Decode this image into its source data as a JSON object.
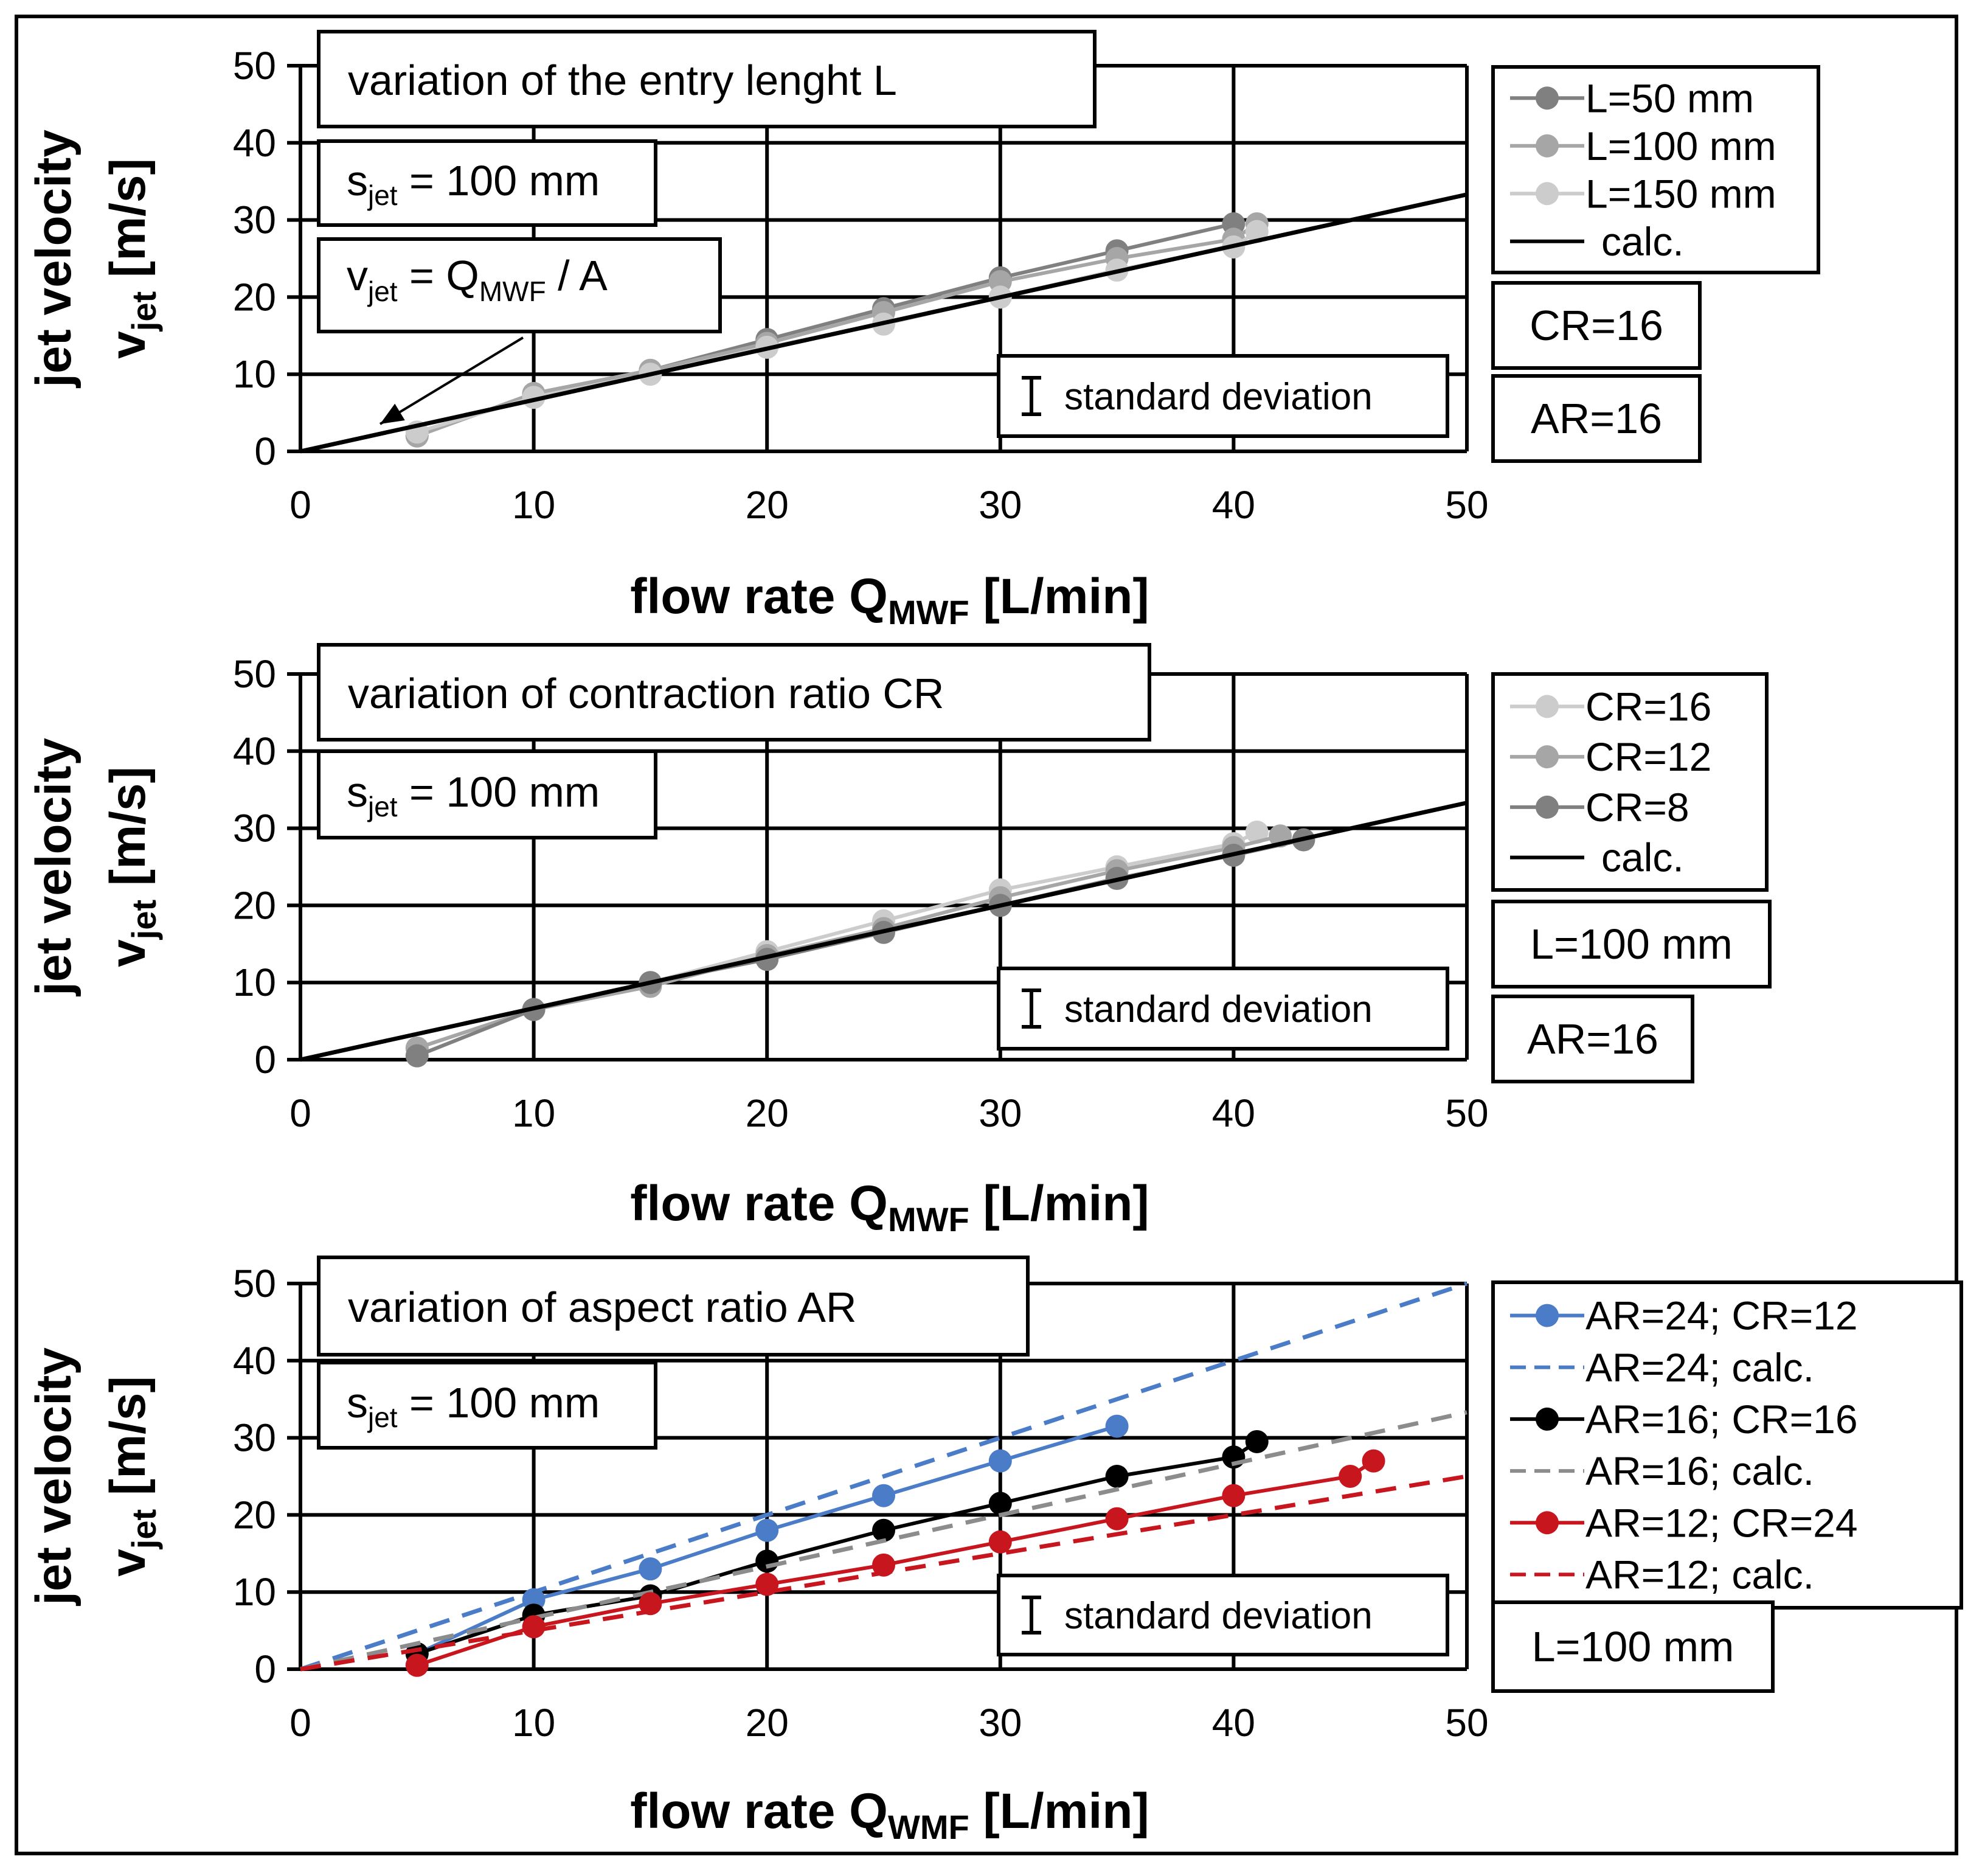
{
  "chart_data": [
    {
      "type": "line",
      "title": "variation of the entry lenght L",
      "annotations": [
        {
          "text": "s",
          "sub": "jet",
          "rest": " = 100 mm"
        },
        {
          "formula": true,
          "parts": [
            "v",
            "jet",
            " = Q",
            "MWF",
            " / A"
          ]
        },
        {
          "text": "standard deviation"
        }
      ],
      "side_boxes": [],
      "side_labels": [
        "CR=16",
        "AR=16"
      ],
      "xlabel": {
        "main": "flow rate Q",
        "sub": "MWF",
        "unit": " [L/min]"
      },
      "ylabel": {
        "line1": "jet velocity",
        "v": "v",
        "sub": "jet",
        "unit": " [m/s]"
      },
      "xlim": [
        0,
        50
      ],
      "ylim": [
        0,
        50
      ],
      "xticks": [
        "0",
        "10",
        "20",
        "30",
        "40",
        "50"
      ],
      "yticks": [
        "0",
        "10",
        "20",
        "30",
        "40",
        "50"
      ],
      "grid": true,
      "legend_position": "right",
      "series": [
        {
          "name": "L=50 mm",
          "color": "#808080",
          "marker": true,
          "dash": false,
          "x": [
            5,
            10,
            15,
            20,
            25,
            30,
            35,
            40
          ],
          "y": [
            2,
            7.5,
            10.5,
            14.5,
            18.5,
            22.5,
            26,
            29.5
          ]
        },
        {
          "name": "L=100 mm",
          "color": "#a6a6a6",
          "marker": true,
          "dash": false,
          "x": [
            5,
            10,
            15,
            20,
            25,
            30,
            35,
            40,
            41
          ],
          "y": [
            2,
            7.5,
            10.5,
            14,
            18,
            22,
            25,
            27.5,
            29.5
          ]
        },
        {
          "name": "L=150 mm",
          "color": "#cccccc",
          "marker": true,
          "dash": false,
          "x": [
            5,
            10,
            15,
            20,
            25,
            30,
            35,
            40,
            41
          ],
          "y": [
            2.5,
            7,
            10,
            13.5,
            16.5,
            20,
            23.5,
            26.5,
            28.5
          ]
        },
        {
          "name": "calc.",
          "color": "#000000",
          "marker": false,
          "dash": false,
          "x": [
            0,
            50
          ],
          "y": [
            0,
            33.3
          ]
        }
      ]
    },
    {
      "type": "line",
      "title": "variation of contraction ratio CR",
      "annotations": [
        {
          "text": "s",
          "sub": "jet",
          "rest": " = 100 mm"
        },
        {
          "text": "standard deviation"
        }
      ],
      "side_labels": [
        "L=100 mm",
        "AR=16"
      ],
      "xlabel": {
        "main": "flow rate Q",
        "sub": "MWF",
        "unit": " [L/min]"
      },
      "ylabel": {
        "line1": "jet velocity",
        "v": "v",
        "sub": "jet",
        "unit": " [m/s]"
      },
      "xlim": [
        0,
        50
      ],
      "ylim": [
        0,
        50
      ],
      "xticks": [
        "0",
        "10",
        "20",
        "30",
        "40",
        "50"
      ],
      "yticks": [
        "0",
        "10",
        "20",
        "30",
        "40",
        "50"
      ],
      "grid": true,
      "legend_position": "right",
      "series": [
        {
          "name": "CR=16",
          "color": "#cccccc",
          "marker": true,
          "dash": false,
          "x": [
            5,
            10,
            15,
            20,
            25,
            30,
            35,
            40,
            41
          ],
          "y": [
            1.5,
            6.5,
            10,
            14,
            18,
            22,
            25,
            28,
            29.5
          ]
        },
        {
          "name": "CR=12",
          "color": "#a6a6a6",
          "marker": true,
          "dash": false,
          "x": [
            5,
            10,
            15,
            20,
            25,
            30,
            35,
            40,
            42
          ],
          "y": [
            1.5,
            6.5,
            9.5,
            13.5,
            17,
            21,
            24.5,
            27.5,
            29
          ]
        },
        {
          "name": "CR=8",
          "color": "#808080",
          "marker": true,
          "dash": false,
          "x": [
            5,
            10,
            15,
            20,
            25,
            30,
            35,
            40,
            43
          ],
          "y": [
            0.5,
            6.5,
            10,
            13,
            16.5,
            20,
            23.5,
            26.5,
            28.5
          ]
        },
        {
          "name": "calc.",
          "color": "#000000",
          "marker": false,
          "dash": false,
          "x": [
            0,
            50
          ],
          "y": [
            0,
            33.3
          ]
        }
      ]
    },
    {
      "type": "line",
      "title": "variation of aspect ratio AR",
      "annotations": [
        {
          "text": "s",
          "sub": "jet",
          "rest": " = 100 mm"
        },
        {
          "text": "standard deviation"
        }
      ],
      "side_labels": [
        "L=100 mm"
      ],
      "xlabel": {
        "main": "flow rate Q",
        "sub": "WMF",
        "unit": " [L/min]"
      },
      "ylabel": {
        "line1": "jet velocity",
        "v": "v",
        "sub": "jet",
        "unit": " [m/s]"
      },
      "xlim": [
        0,
        50
      ],
      "ylim": [
        0,
        50
      ],
      "xticks": [
        "0",
        "10",
        "20",
        "30",
        "40",
        "50"
      ],
      "yticks": [
        "0",
        "10",
        "20",
        "30",
        "40",
        "50"
      ],
      "grid": true,
      "legend_position": "right",
      "series": [
        {
          "name": "AR=24; CR=12",
          "color": "#4a7cc7",
          "marker": true,
          "dash": false,
          "x": [
            5,
            10,
            15,
            20,
            25,
            30,
            35
          ],
          "y": [
            2,
            9,
            13,
            18,
            22.5,
            27,
            31.5
          ]
        },
        {
          "name": "AR=24; calc.",
          "color": "#4a7cc7",
          "marker": false,
          "dash": true,
          "x": [
            0,
            50
          ],
          "y": [
            0,
            50
          ]
        },
        {
          "name": "AR=16; CR=16",
          "color": "#000000",
          "marker": true,
          "dash": false,
          "x": [
            5,
            10,
            15,
            20,
            25,
            30,
            35,
            40,
            41
          ],
          "y": [
            2,
            7,
            9.5,
            14,
            18,
            21.5,
            25,
            27.5,
            29.5
          ]
        },
        {
          "name": "AR=16; calc.",
          "color": "#8c8c8c",
          "marker": false,
          "dash": true,
          "x": [
            0,
            50
          ],
          "y": [
            0,
            33.3
          ]
        },
        {
          "name": "AR=12; CR=24",
          "color": "#c8161e",
          "marker": true,
          "dash": false,
          "x": [
            5,
            10,
            15,
            20,
            25,
            30,
            35,
            40,
            45,
            46
          ],
          "y": [
            0.5,
            5.5,
            8.5,
            11,
            13.5,
            16.5,
            19.5,
            22.5,
            25,
            27
          ]
        },
        {
          "name": "AR=12; calc.",
          "color": "#c8161e",
          "marker": false,
          "dash": true,
          "x": [
            0,
            50
          ],
          "y": [
            0,
            25
          ]
        }
      ]
    }
  ]
}
